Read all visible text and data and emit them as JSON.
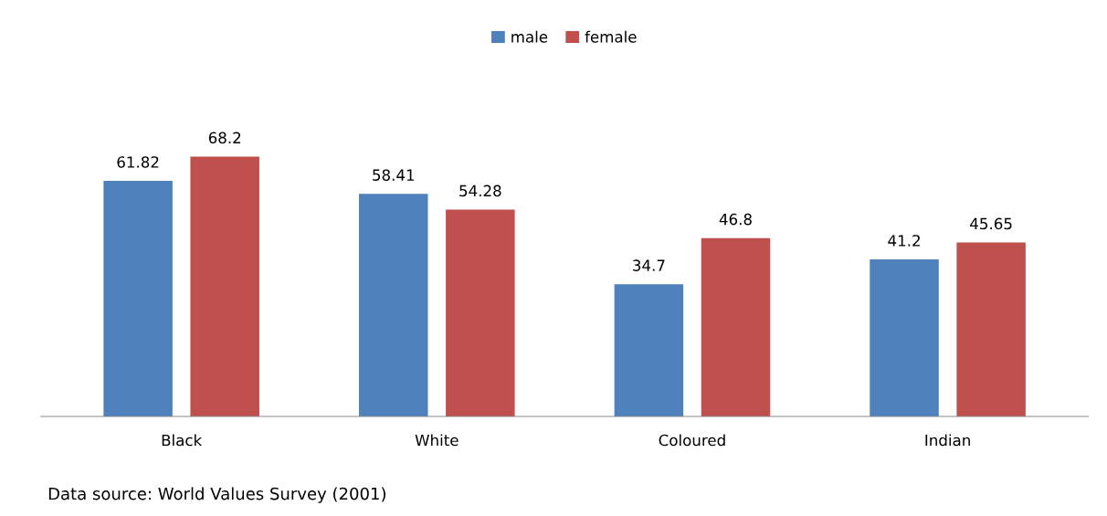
{
  "chart_data": {
    "type": "bar",
    "categories": [
      "Black",
      "White",
      "Coloured",
      "Indian"
    ],
    "series": [
      {
        "name": "male",
        "color": "#4f81bd",
        "values": [
          61.82,
          58.41,
          34.7,
          41.2
        ]
      },
      {
        "name": "female",
        "color": "#c0504d",
        "values": [
          68.2,
          54.28,
          46.8,
          45.65
        ]
      }
    ],
    "data_labels": true,
    "legend": "top",
    "grid": false,
    "annotations": [
      "Data source: World Values Survey (2001)"
    ]
  }
}
